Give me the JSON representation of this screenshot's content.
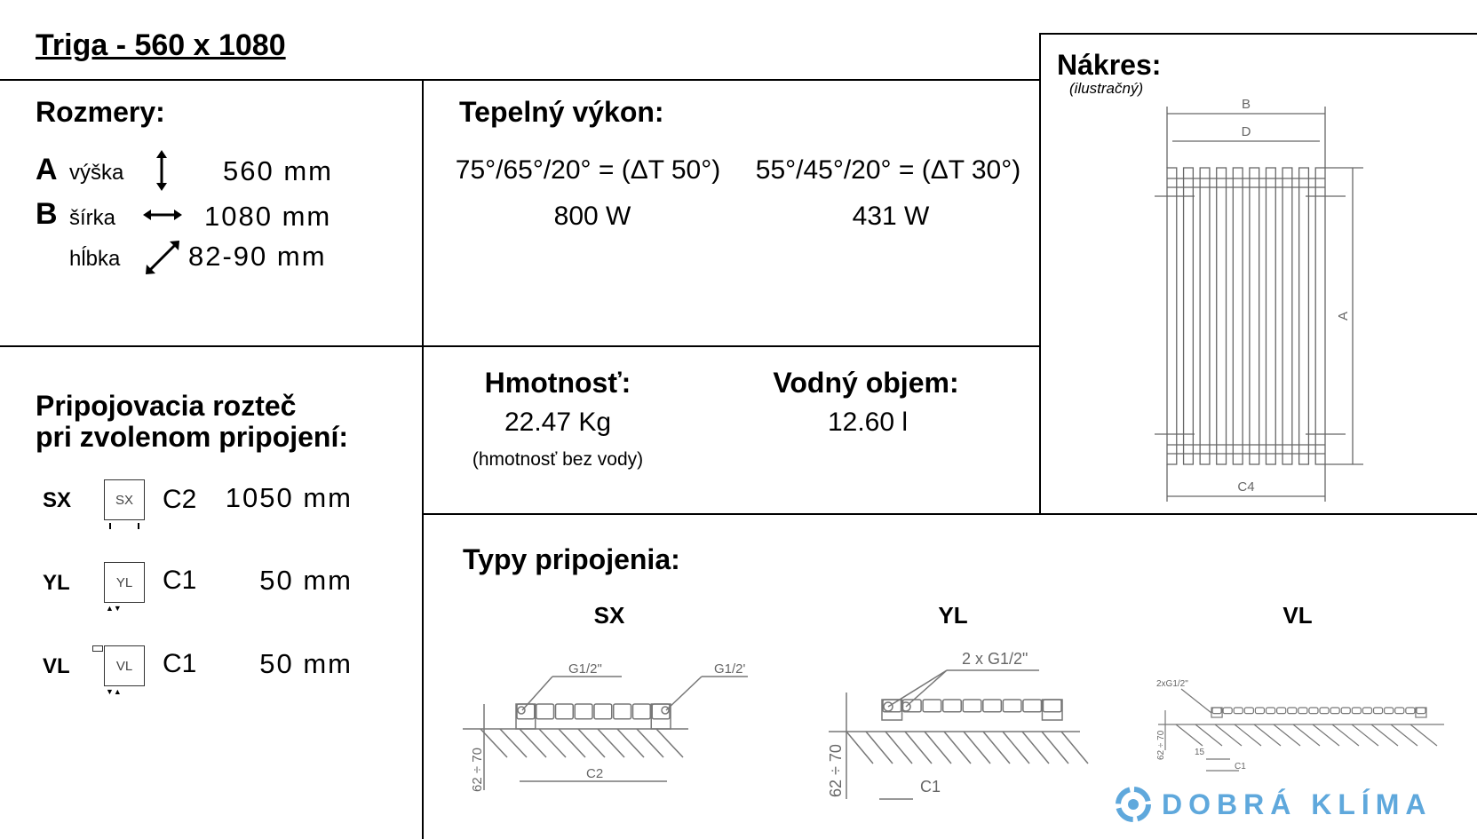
{
  "title": "Triga - 560 x 1080",
  "dimensions": {
    "heading": "Rozmery:",
    "rows": [
      {
        "letter": "A",
        "label": "výška",
        "icon": "vertical-arrow-icon",
        "value": "560 mm"
      },
      {
        "letter": "B",
        "label": "šírka",
        "icon": "horizontal-arrow-icon",
        "value": "1080 mm"
      },
      {
        "letter": "",
        "label": "hĺbka",
        "icon": "diagonal-arrow-icon",
        "value": "82-90 mm"
      }
    ]
  },
  "heat_output": {
    "heading": "Tepelný výkon:",
    "columns": [
      {
        "condition": "75°/65°/20° = (ΔT 50°)",
        "value": "800 W"
      },
      {
        "condition": "55°/45°/20° = (ΔT 30°)",
        "value": "431 W"
      }
    ]
  },
  "weight": {
    "heading": "Hmotnosť:",
    "value": "22.47 Kg",
    "note": "(hmotnosť bez vody)"
  },
  "water": {
    "heading": "Vodný objem:",
    "value": "12.60 l"
  },
  "spacing": {
    "heading1": "Pripojovacia rozteč",
    "heading2": "pri zvolenom pripojení:",
    "rows": [
      {
        "code": "SX",
        "icon_label": "SX",
        "dim": "C2",
        "value": "1050 mm"
      },
      {
        "code": "YL",
        "icon_label": "YL",
        "dim": "C1",
        "value": "50 mm"
      },
      {
        "code": "VL",
        "icon_label": "VL",
        "dim": "C1",
        "value": "50 mm"
      }
    ]
  },
  "drawing": {
    "heading": "Nákres:",
    "subheading": "(ilustračný)",
    "labels": {
      "b": "B",
      "d": "D",
      "a": "A",
      "c4": "C4"
    }
  },
  "connection_types": {
    "heading": "Typy pripojenia:",
    "types": [
      {
        "label": "SX",
        "thread_left": "G1/2\"",
        "thread_right": "G1/2'",
        "dim": "C2",
        "height": "62 ÷ 70"
      },
      {
        "label": "YL",
        "thread": "2 x G1/2\"",
        "dim": "C1",
        "height": "62 ÷ 70"
      },
      {
        "label": "VL",
        "thread": "2xG1/2\"",
        "offset": "15",
        "dim": "C1",
        "height": "62 ÷ 70"
      }
    ]
  },
  "logo": {
    "text": "DOBRÁ KLÍMA",
    "color": "#5fa8dc"
  }
}
